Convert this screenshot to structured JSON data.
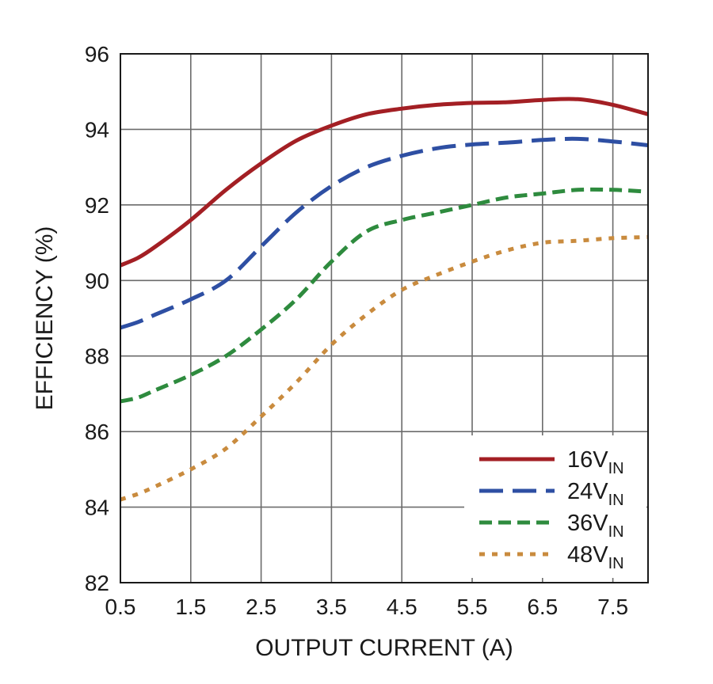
{
  "chart_data": {
    "type": "line",
    "title": "",
    "xlabel": "OUTPUT CURRENT (A)",
    "ylabel": "EFFICIENCY (%)",
    "xlim": [
      0.5,
      8.0
    ],
    "ylim": [
      82,
      96
    ],
    "xticks": [
      0.5,
      1.5,
      2.5,
      3.5,
      4.5,
      5.5,
      6.5,
      7.5
    ],
    "xtick_labels": [
      "0.5",
      "1.5",
      "2.5",
      "3.5",
      "4.5",
      "5.5",
      "6.5",
      "7.5"
    ],
    "yticks": [
      82,
      84,
      86,
      88,
      90,
      92,
      94,
      96
    ],
    "ytick_labels": [
      "82",
      "84",
      "86",
      "88",
      "90",
      "92",
      "94",
      "96"
    ],
    "grid": true,
    "legend_position": "bottom-right",
    "series": [
      {
        "name": "16V",
        "subscript": "IN",
        "color": "#a31f24",
        "style": "solid",
        "x": [
          0.5,
          0.75,
          1.0,
          1.5,
          2.0,
          2.5,
          3.0,
          3.5,
          4.0,
          4.5,
          5.0,
          5.5,
          6.0,
          6.5,
          7.0,
          7.5,
          8.0
        ],
        "y": [
          90.4,
          90.6,
          90.9,
          91.6,
          92.4,
          93.1,
          93.7,
          94.1,
          94.4,
          94.55,
          94.65,
          94.7,
          94.72,
          94.78,
          94.8,
          94.65,
          94.4
        ]
      },
      {
        "name": "24V",
        "subscript": "IN",
        "color": "#2e4fa3",
        "style": "dashed",
        "x": [
          0.5,
          0.75,
          1.0,
          1.5,
          2.0,
          2.5,
          3.0,
          3.5,
          4.0,
          4.5,
          5.0,
          5.5,
          6.0,
          6.5,
          7.0,
          7.5,
          8.0
        ],
        "y": [
          88.75,
          88.9,
          89.1,
          89.5,
          90.0,
          90.9,
          91.8,
          92.5,
          93.0,
          93.3,
          93.5,
          93.6,
          93.65,
          93.72,
          93.75,
          93.68,
          93.58
        ]
      },
      {
        "name": "36V",
        "subscript": "IN",
        "color": "#2e8b3e",
        "style": "short-dashed",
        "x": [
          0.5,
          0.75,
          1.0,
          1.5,
          2.0,
          2.5,
          3.0,
          3.5,
          4.0,
          4.5,
          5.0,
          5.5,
          6.0,
          6.5,
          7.0,
          7.5,
          8.0
        ],
        "y": [
          86.8,
          86.9,
          87.1,
          87.5,
          88.0,
          88.7,
          89.5,
          90.5,
          91.3,
          91.6,
          91.8,
          92.0,
          92.2,
          92.3,
          92.4,
          92.4,
          92.35
        ]
      },
      {
        "name": "48V",
        "subscript": "IN",
        "color": "#c98b3e",
        "style": "dotted",
        "x": [
          0.5,
          0.75,
          1.0,
          1.5,
          2.0,
          2.5,
          3.0,
          3.5,
          4.0,
          4.5,
          5.0,
          5.5,
          6.0,
          6.5,
          7.0,
          7.5,
          8.0
        ],
        "y": [
          84.2,
          84.35,
          84.55,
          85.0,
          85.55,
          86.4,
          87.3,
          88.3,
          89.1,
          89.75,
          90.15,
          90.5,
          90.8,
          91.0,
          91.05,
          91.12,
          91.15
        ]
      }
    ]
  }
}
